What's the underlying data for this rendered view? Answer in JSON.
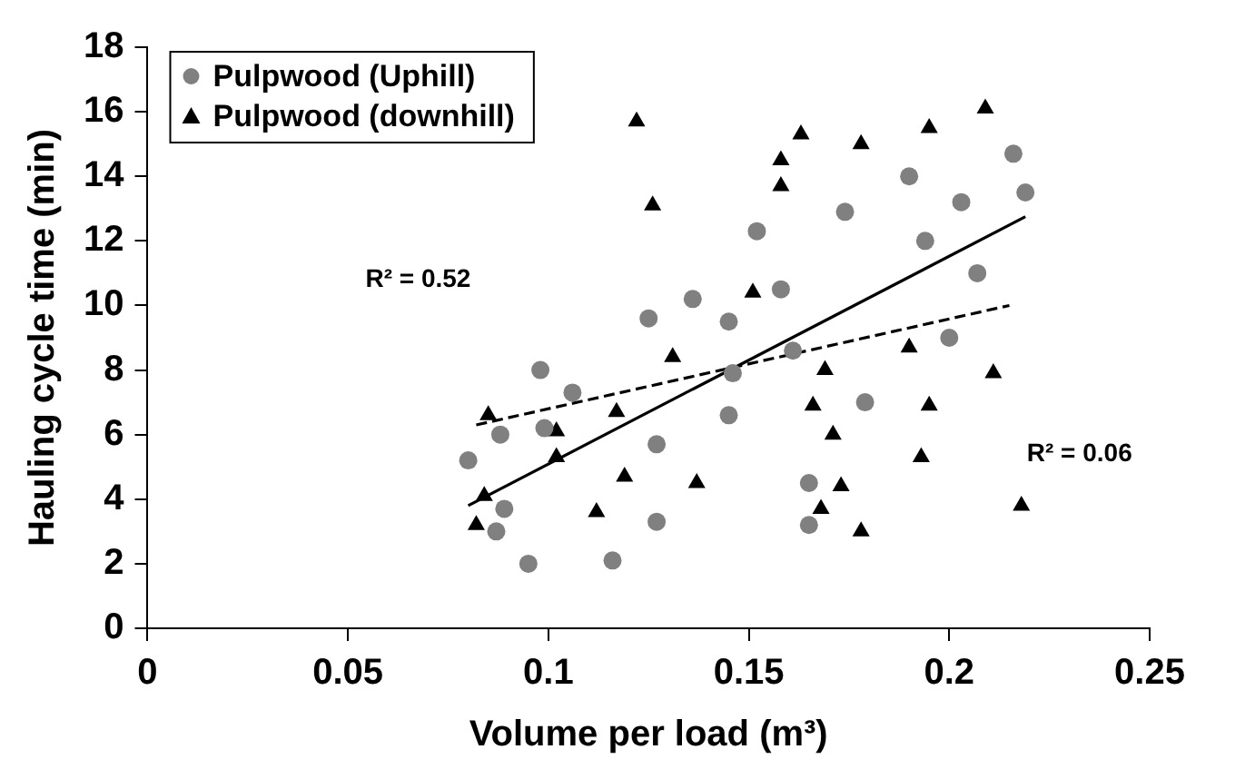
{
  "chart_data": {
    "type": "scatter",
    "xlabel": "Volume per load (m³)",
    "ylabel": "Hauling cycle time (min)",
    "xlim": [
      0,
      0.25
    ],
    "xticks": [
      0,
      0.05,
      0.1,
      0.15,
      0.2,
      0.25
    ],
    "ylim": [
      0,
      18
    ],
    "yticks": [
      0,
      2,
      4,
      6,
      8,
      10,
      12,
      14,
      16,
      18
    ],
    "grid": false,
    "legend": "top left",
    "series": [
      {
        "name": "Pulpwood (Uphill)",
        "marker": "circle",
        "color": "#808080",
        "x": [
          0.08,
          0.087,
          0.088,
          0.089,
          0.095,
          0.098,
          0.099,
          0.106,
          0.116,
          0.125,
          0.127,
          0.127,
          0.136,
          0.145,
          0.145,
          0.146,
          0.152,
          0.158,
          0.161,
          0.165,
          0.165,
          0.174,
          0.179,
          0.19,
          0.194,
          0.2,
          0.203,
          0.207,
          0.216,
          0.219
        ],
        "values": [
          5.2,
          3.0,
          6.0,
          3.7,
          2.0,
          8.0,
          6.2,
          7.3,
          2.1,
          9.6,
          5.7,
          3.3,
          10.2,
          9.5,
          6.6,
          7.9,
          12.3,
          10.5,
          8.6,
          4.5,
          3.2,
          12.9,
          7.0,
          14.0,
          12.0,
          9.0,
          13.2,
          11.0,
          14.7,
          13.5
        ]
      },
      {
        "name": "Pulpwood (downhill)",
        "marker": "triangle",
        "color": "#000000",
        "x": [
          0.082,
          0.084,
          0.085,
          0.102,
          0.102,
          0.112,
          0.117,
          0.119,
          0.122,
          0.126,
          0.131,
          0.137,
          0.151,
          0.158,
          0.158,
          0.163,
          0.166,
          0.168,
          0.169,
          0.171,
          0.173,
          0.178,
          0.178,
          0.19,
          0.193,
          0.195,
          0.195,
          0.209,
          0.211,
          0.218
        ],
        "values": [
          3.2,
          4.1,
          6.6,
          6.1,
          5.3,
          3.6,
          6.7,
          4.7,
          15.7,
          13.1,
          8.4,
          4.5,
          10.4,
          14.5,
          13.7,
          15.3,
          6.9,
          3.7,
          8.0,
          6.0,
          4.4,
          3.0,
          15.0,
          8.7,
          5.3,
          6.9,
          15.5,
          16.1,
          7.9,
          3.8
        ]
      },
      {
        "type": "line",
        "marker": "none",
        "line_style": "solid",
        "color": "#000000",
        "x": [
          0.08,
          0.219
        ],
        "values": [
          3.8,
          12.75
        ]
      },
      {
        "type": "line",
        "marker": "none",
        "line_style": "dashed",
        "color": "#000000",
        "x": [
          0.082,
          0.215
        ],
        "values": [
          6.3,
          10.0
        ]
      }
    ],
    "annotations": [
      "R² = 0.52",
      "R² = 0.06"
    ]
  }
}
